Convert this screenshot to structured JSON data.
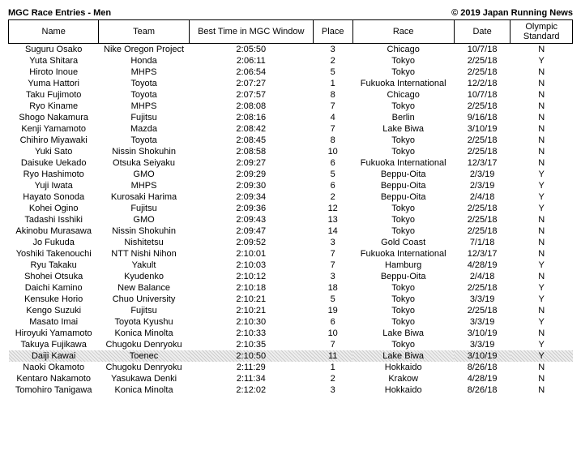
{
  "header": {
    "title": "MGC Race Entries - Men",
    "copyright": "© 2019 Japan Running News"
  },
  "columns": [
    "Name",
    "Team",
    "Best Time in MGC Window",
    "Place",
    "Race",
    "Date",
    "Olympic Standard"
  ],
  "highlight_index": 27,
  "rows": [
    [
      "Suguru Osako",
      "Nike Oregon Project",
      "2:05:50",
      "3",
      "Chicago",
      "10/7/18",
      "N"
    ],
    [
      "Yuta Shitara",
      "Honda",
      "2:06:11",
      "2",
      "Tokyo",
      "2/25/18",
      "Y"
    ],
    [
      "Hiroto Inoue",
      "MHPS",
      "2:06:54",
      "5",
      "Tokyo",
      "2/25/18",
      "N"
    ],
    [
      "Yuma Hattori",
      "Toyota",
      "2:07:27",
      "1",
      "Fukuoka International",
      "12/2/18",
      "N"
    ],
    [
      "Taku Fujimoto",
      "Toyota",
      "2:07:57",
      "8",
      "Chicago",
      "10/7/18",
      "N"
    ],
    [
      "Ryo Kiname",
      "MHPS",
      "2:08:08",
      "7",
      "Tokyo",
      "2/25/18",
      "N"
    ],
    [
      "Shogo Nakamura",
      "Fujitsu",
      "2:08:16",
      "4",
      "Berlin",
      "9/16/18",
      "N"
    ],
    [
      "Kenji Yamamoto",
      "Mazda",
      "2:08:42",
      "7",
      "Lake Biwa",
      "3/10/19",
      "N"
    ],
    [
      "Chihiro Miyawaki",
      "Toyota",
      "2:08:45",
      "8",
      "Tokyo",
      "2/25/18",
      "N"
    ],
    [
      "Yuki Sato",
      "Nissin Shokuhin",
      "2:08:58",
      "10",
      "Tokyo",
      "2/25/18",
      "N"
    ],
    [
      "Daisuke Uekado",
      "Otsuka Seiyaku",
      "2:09:27",
      "6",
      "Fukuoka International",
      "12/3/17",
      "N"
    ],
    [
      "Ryo Hashimoto",
      "GMO",
      "2:09:29",
      "5",
      "Beppu-Oita",
      "2/3/19",
      "Y"
    ],
    [
      "Yuji Iwata",
      "MHPS",
      "2:09:30",
      "6",
      "Beppu-Oita",
      "2/3/19",
      "Y"
    ],
    [
      "Hayato Sonoda",
      "Kurosaki Harima",
      "2:09:34",
      "2",
      "Beppu-Oita",
      "2/4/18",
      "Y"
    ],
    [
      "Kohei Ogino",
      "Fujitsu",
      "2:09:36",
      "12",
      "Tokyo",
      "2/25/18",
      "Y"
    ],
    [
      "Tadashi Isshiki",
      "GMO",
      "2:09:43",
      "13",
      "Tokyo",
      "2/25/18",
      "N"
    ],
    [
      "Akinobu Murasawa",
      "Nissin Shokuhin",
      "2:09:47",
      "14",
      "Tokyo",
      "2/25/18",
      "N"
    ],
    [
      "Jo Fukuda",
      "Nishitetsu",
      "2:09:52",
      "3",
      "Gold Coast",
      "7/1/18",
      "N"
    ],
    [
      "Yoshiki Takenouchi",
      "NTT Nishi Nihon",
      "2:10:01",
      "7",
      "Fukuoka International",
      "12/3/17",
      "N"
    ],
    [
      "Ryu Takaku",
      "Yakult",
      "2:10:03",
      "7",
      "Hamburg",
      "4/28/19",
      "Y"
    ],
    [
      "Shohei Otsuka",
      "Kyudenko",
      "2:10:12",
      "3",
      "Beppu-Oita",
      "2/4/18",
      "N"
    ],
    [
      "Daichi Kamino",
      "New Balance",
      "2:10:18",
      "18",
      "Tokyo",
      "2/25/18",
      "Y"
    ],
    [
      "Kensuke Horio",
      "Chuo University",
      "2:10:21",
      "5",
      "Tokyo",
      "3/3/19",
      "Y"
    ],
    [
      "Kengo Suzuki",
      "Fujitsu",
      "2:10:21",
      "19",
      "Tokyo",
      "2/25/18",
      "N"
    ],
    [
      "Masato Imai",
      "Toyota Kyushu",
      "2:10:30",
      "6",
      "Tokyo",
      "3/3/19",
      "Y"
    ],
    [
      "Hiroyuki Yamamoto",
      "Konica Minolta",
      "2:10:33",
      "10",
      "Lake Biwa",
      "3/10/19",
      "N"
    ],
    [
      "Takuya Fujikawa",
      "Chugoku Denryoku",
      "2:10:35",
      "7",
      "Tokyo",
      "3/3/19",
      "Y"
    ],
    [
      "Daiji Kawai",
      "Toenec",
      "2:10:50",
      "11",
      "Lake Biwa",
      "3/10/19",
      "Y"
    ],
    [
      "Naoki Okamoto",
      "Chugoku Denryoku",
      "2:11:29",
      "1",
      "Hokkaido",
      "8/26/18",
      "N"
    ],
    [
      "Kentaro Nakamoto",
      "Yasukawa Denki",
      "2:11:34",
      "2",
      "Krakow",
      "4/28/19",
      "N"
    ],
    [
      "Tomohiro Tanigawa",
      "Konica Minolta",
      "2:12:02",
      "3",
      "Hokkaido",
      "8/26/18",
      "N"
    ]
  ]
}
